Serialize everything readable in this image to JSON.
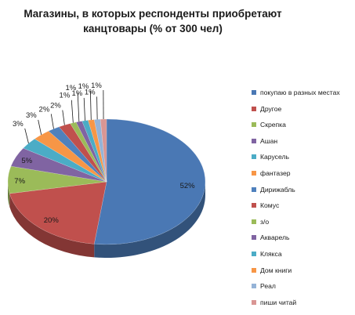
{
  "chart_data": {
    "type": "pie",
    "title": [
      "Магазины, в которых респонденты приобретают",
      "канцтовары (% от 300 чел)"
    ],
    "legend_position": "right",
    "slices": [
      {
        "label": "покупаю в разных местах",
        "value": 52,
        "data_label": "52%",
        "color": "#4a78b4"
      },
      {
        "label": "Другое",
        "value": 20,
        "data_label": "20%",
        "color": "#c0504d"
      },
      {
        "label": "Скрепка",
        "value": 7,
        "data_label": "7%",
        "color": "#9bbb59"
      },
      {
        "label": "Ашан",
        "value": 5,
        "data_label": "5%",
        "color": "#8064a2"
      },
      {
        "label": "Карусель",
        "value": 3,
        "data_label": "3%",
        "color": "#4bacc6"
      },
      {
        "label": "фантазер",
        "value": 3,
        "data_label": "3%",
        "color": "#f79646"
      },
      {
        "label": "Дирижабль",
        "value": 2,
        "data_label": "2%",
        "color": "#4f81bd"
      },
      {
        "label": "Комус",
        "value": 2,
        "data_label": "2%",
        "color": "#c0504d"
      },
      {
        "label": "з/о",
        "value": 1,
        "data_label": "1%",
        "color": "#9bbb59"
      },
      {
        "label": "Акварель",
        "value": 1,
        "data_label": "1%",
        "color": "#8064a2"
      },
      {
        "label": "Клякса",
        "value": 1,
        "data_label": "1%",
        "color": "#4bacc6"
      },
      {
        "label": "Дом книги",
        "value": 1,
        "data_label": "1%",
        "color": "#f79646"
      },
      {
        "label": "Реал",
        "value": 1,
        "data_label": "1%",
        "color": "#95b3d7"
      },
      {
        "label": "пиши читай",
        "value": 1,
        "data_label": "1%",
        "color": "#d99694"
      }
    ]
  }
}
